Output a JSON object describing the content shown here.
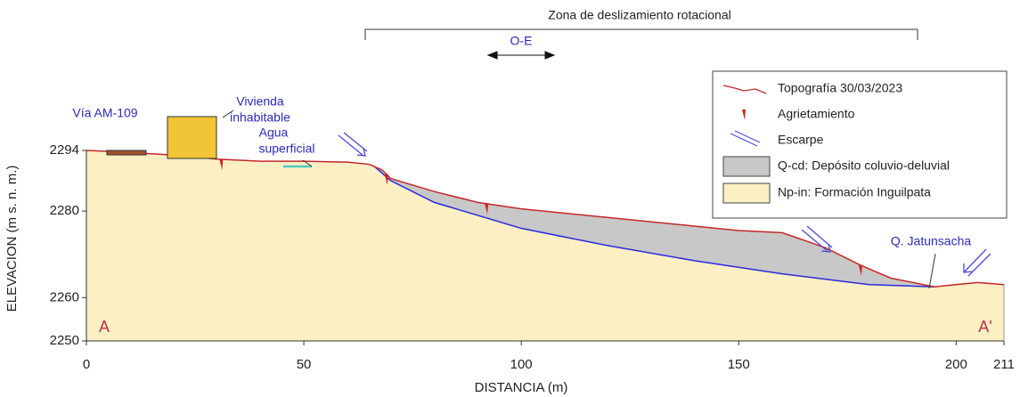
{
  "chart_data": {
    "type": "cross-section",
    "title": "Zona de deslizamiento rotacional",
    "direction": "O-E",
    "x_label": "DISTANCIA (m)",
    "y_label": "ELEVACION (m s. n. m.)",
    "xlim": [
      0,
      211
    ],
    "xticks": [
      0,
      50,
      100,
      150,
      200,
      211
    ],
    "ylim": [
      2250,
      2294
    ],
    "yticks": [
      2250,
      2260,
      2280,
      2294
    ],
    "series": [
      {
        "name": "Topografía 30/03/2023",
        "color": "#c62828",
        "x": [
          0,
          5,
          10,
          19,
          30,
          40,
          50,
          60,
          65,
          68,
          70,
          80,
          90,
          100,
          110,
          120,
          130,
          140,
          150,
          160,
          170,
          178,
          185,
          195,
          200,
          205,
          211
        ],
        "values": [
          2294,
          2293.8,
          2293.5,
          2293,
          2292,
          2291.5,
          2291.5,
          2291.3,
          2290.8,
          2289.5,
          2287.5,
          2284.5,
          2282,
          2280.5,
          2279.5,
          2278.5,
          2277.5,
          2276.5,
          2275.5,
          2275,
          2271.5,
          2267.5,
          2264.5,
          2262.5,
          2263,
          2263.5,
          2263
        ]
      },
      {
        "name": "Q-cd: Depósito coluvio-deluvial",
        "color": "#c8c8c8",
        "x": [
          66,
          70,
          80,
          100,
          120,
          140,
          160,
          180,
          195
        ],
        "values": [
          2290.5,
          2287,
          2282,
          2276,
          2272,
          2268.5,
          2265.5,
          2263,
          2262.5
        ]
      }
    ],
    "legend": {
      "position": "upper right",
      "items": [
        {
          "label": "Topografía 30/03/2023"
        },
        {
          "label": "Agrietamiento"
        },
        {
          "label": "Escarpe"
        },
        {
          "label": "Q-cd: Depósito coluvio-deluvial",
          "color": "#c8c8c8"
        },
        {
          "label": "Np-in: Formación Inguilpata",
          "color": "#fcefc4"
        }
      ]
    },
    "cracks": [
      31,
      69,
      92,
      178
    ],
    "annotations": {
      "road": "Vía AM-109",
      "house": [
        "Vivienda",
        "inhabitable"
      ],
      "water": [
        "Agua",
        "superficial"
      ],
      "creek": "Q. Jatunsacha",
      "start": "A",
      "end": "A'"
    }
  }
}
